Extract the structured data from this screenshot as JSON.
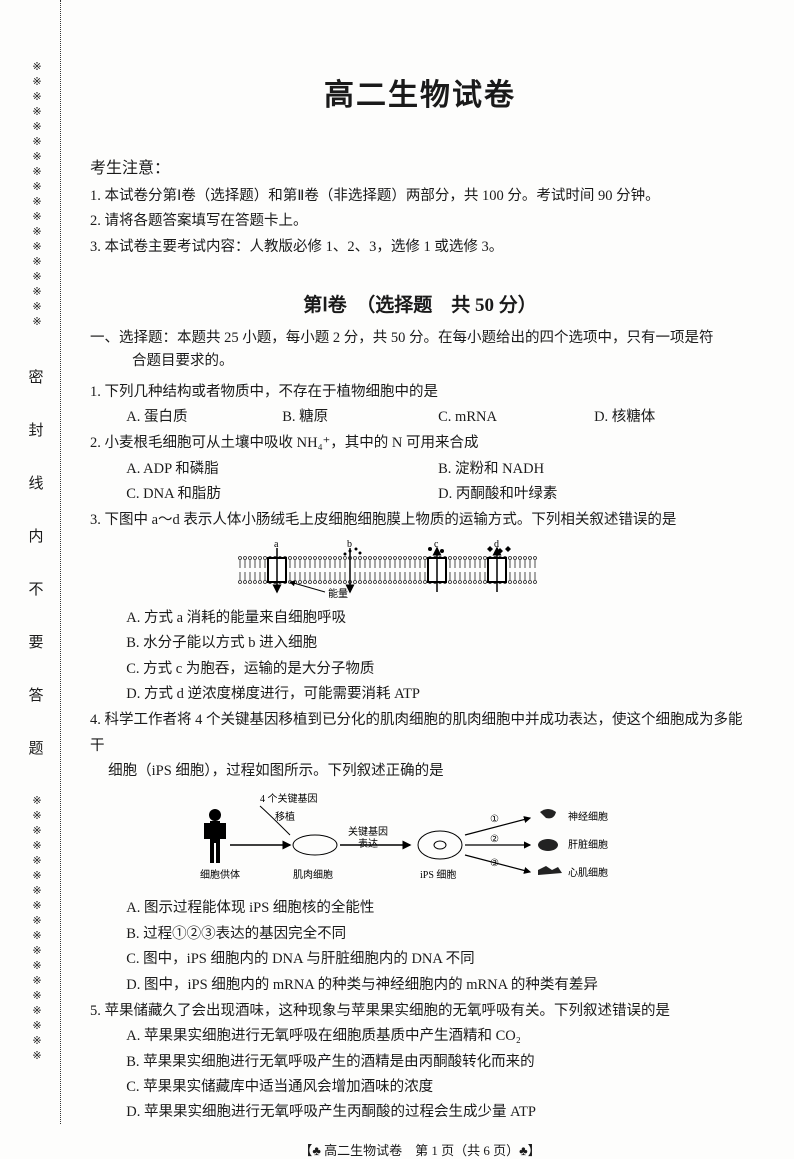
{
  "colors": {
    "text": "#1a1a1a",
    "background": "#fdfdfc",
    "line": "#333333"
  },
  "binding": {
    "pattern": "※※※※※※※※※※※※※※※※※※",
    "chars": [
      "密",
      "封",
      "线",
      "内",
      "不",
      "要",
      "答",
      "题"
    ]
  },
  "title": "高二生物试卷",
  "notice": {
    "heading": "考生注意：",
    "items": [
      "1. 本试卷分第Ⅰ卷（选择题）和第Ⅱ卷（非选择题）两部分，共 100 分。考试时间 90 分钟。",
      "2. 请将各题答案填写在答题卡上。",
      "3. 本试卷主要考试内容：人教版必修 1、2、3，选修 1 或选修 3。"
    ]
  },
  "section1": {
    "title": "第Ⅰ卷　（选择题　共 50 分）",
    "instructions_l1": "一、选择题：本题共 25 小题，每小题 2 分，共 50 分。在每小题给出的四个选项中，只有一项是符",
    "instructions_l2": "合题目要求的。"
  },
  "q1": {
    "stem": "1. 下列几种结构或者物质中，不存在于植物细胞中的是",
    "A": "A. 蛋白质",
    "B": "B. 糖原",
    "C": "C. mRNA",
    "D": "D. 核糖体"
  },
  "q2": {
    "stem": "2. 小麦根毛细胞可从土壤中吸收 NH₄⁺，其中的 N 可用来合成",
    "A": "A. ADP 和磷脂",
    "B": "B. 淀粉和 NADH",
    "C": "C. DNA 和脂肪",
    "D": "D. 丙酮酸和叶绿素"
  },
  "q3": {
    "stem": "3. 下图中 a～d 表示人体小肠绒毛上皮细胞细胞膜上物质的运输方式。下列相关叙述错误的是",
    "diagram": {
      "labels": {
        "a": "a",
        "b": "b",
        "c": "c",
        "d": "d",
        "energy": "能量"
      },
      "membrane_color": "#222",
      "protein_fill": "#ffffff",
      "arrow_color": "#000"
    },
    "A": "A. 方式 a 消耗的能量来自细胞呼吸",
    "B": "B. 水分子能以方式 b 进入细胞",
    "C": "C. 方式 c 为胞吞，运输的是大分子物质",
    "D": "D. 方式 d 逆浓度梯度进行，可能需要消耗 ATP"
  },
  "q4": {
    "stem1": "4. 科学工作者将 4 个关键基因移植到已分化的肌肉细胞的肌肉细胞中并成功表达，使这个细胞成为多能干",
    "stem2": "　 细胞（iPS 细胞），过程如图所示。下列叙述正确的是",
    "diagram": {
      "labels": {
        "genes": "4 个关键基因",
        "transplant": "移植",
        "donor": "细胞供体",
        "muscle": "肌肉细胞",
        "express": "关键基因\n表达",
        "ips": "iPS 细胞",
        "n1": "①",
        "n2": "②",
        "n3": "③",
        "nerve": "神经细胞",
        "liver": "肝脏细胞",
        "heart": "心肌细胞"
      }
    },
    "A": "A. 图示过程能体现 iPS 细胞核的全能性",
    "B": "B. 过程①②③表达的基因完全不同",
    "C": "C. 图中，iPS 细胞内的 DNA 与肝脏细胞内的 DNA 不同",
    "D": "D. 图中，iPS 细胞内的 mRNA 的种类与神经细胞内的 mRNA 的种类有差异"
  },
  "q5": {
    "stem": "5. 苹果储藏久了会出现酒味，这种现象与苹果果实细胞的无氧呼吸有关。下列叙述错误的是",
    "A": "A. 苹果果实细胞进行无氧呼吸在细胞质基质中产生酒精和 CO₂",
    "B": "B. 苹果果实细胞进行无氧呼吸产生的酒精是由丙酮酸转化而来的",
    "C": "C. 苹果果实储藏库中适当通风会增加酒味的浓度",
    "D": "D. 苹果果实细胞进行无氧呼吸产生丙酮酸的过程会生成少量 ATP"
  },
  "footer": "【♣ 高二生物试卷　第 1 页（共 6 页）♣】"
}
